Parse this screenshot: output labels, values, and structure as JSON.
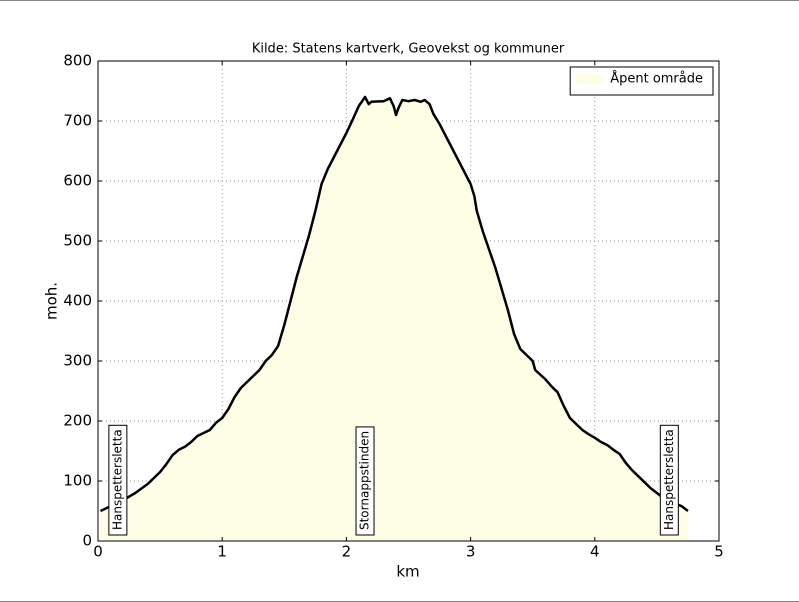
{
  "chart_data": {
    "type": "area",
    "title": "Kilde: Statens kartverk, Geovekst og kommuner",
    "xlabel": "km",
    "ylabel": "moh.",
    "x": [
      0.02,
      0.1,
      0.2,
      0.3,
      0.4,
      0.5,
      0.55,
      0.6,
      0.65,
      0.7,
      0.75,
      0.8,
      0.9,
      0.95,
      1.0,
      1.05,
      1.1,
      1.15,
      1.2,
      1.3,
      1.35,
      1.4,
      1.45,
      1.5,
      1.55,
      1.6,
      1.65,
      1.7,
      1.75,
      1.8,
      1.85,
      1.9,
      1.95,
      2.0,
      2.05,
      2.1,
      2.15,
      2.18,
      2.2,
      2.3,
      2.35,
      2.38,
      2.4,
      2.42,
      2.45,
      2.5,
      2.55,
      2.6,
      2.63,
      2.67,
      2.7,
      2.75,
      2.8,
      2.85,
      2.9,
      2.95,
      3.0,
      3.03,
      3.05,
      3.1,
      3.15,
      3.2,
      3.25,
      3.3,
      3.35,
      3.4,
      3.45,
      3.5,
      3.52,
      3.6,
      3.65,
      3.7,
      3.75,
      3.8,
      3.85,
      3.9,
      3.95,
      4.0,
      4.05,
      4.1,
      4.15,
      4.2,
      4.25,
      4.3,
      4.35,
      4.4,
      4.45,
      4.5,
      4.55,
      4.6,
      4.7,
      4.75
    ],
    "series": [
      {
        "name": "Åpent område",
        "color": "#fefee6",
        "line_color": "#000000",
        "values": [
          50,
          58,
          68,
          80,
          95,
          115,
          128,
          143,
          152,
          157,
          165,
          175,
          185,
          197,
          205,
          220,
          240,
          255,
          265,
          285,
          300,
          310,
          325,
          360,
          400,
          440,
          475,
          510,
          550,
          595,
          620,
          640,
          660,
          680,
          702,
          725,
          740,
          728,
          732,
          733,
          738,
          725,
          710,
          722,
          735,
          733,
          735,
          732,
          735,
          728,
          712,
          695,
          675,
          655,
          635,
          615,
          595,
          575,
          550,
          515,
          485,
          455,
          420,
          385,
          345,
          320,
          310,
          300,
          285,
          270,
          258,
          248,
          225,
          205,
          195,
          185,
          178,
          172,
          165,
          160,
          152,
          145,
          130,
          118,
          108,
          98,
          88,
          80,
          72,
          66,
          58,
          50
        ]
      }
    ],
    "annotations": [
      {
        "x": 0.16,
        "label": "Hanspettersletta"
      },
      {
        "x": 2.15,
        "label": "Stornappstinden"
      },
      {
        "x": 4.6,
        "label": "Hanspettersletta"
      }
    ],
    "xlim": [
      0,
      5
    ],
    "ylim": [
      0,
      800
    ],
    "xticks": [
      0,
      1,
      2,
      3,
      4,
      5
    ],
    "yticks": [
      0,
      100,
      200,
      300,
      400,
      500,
      600,
      700,
      800
    ],
    "grid": true,
    "legend": "upper right"
  }
}
